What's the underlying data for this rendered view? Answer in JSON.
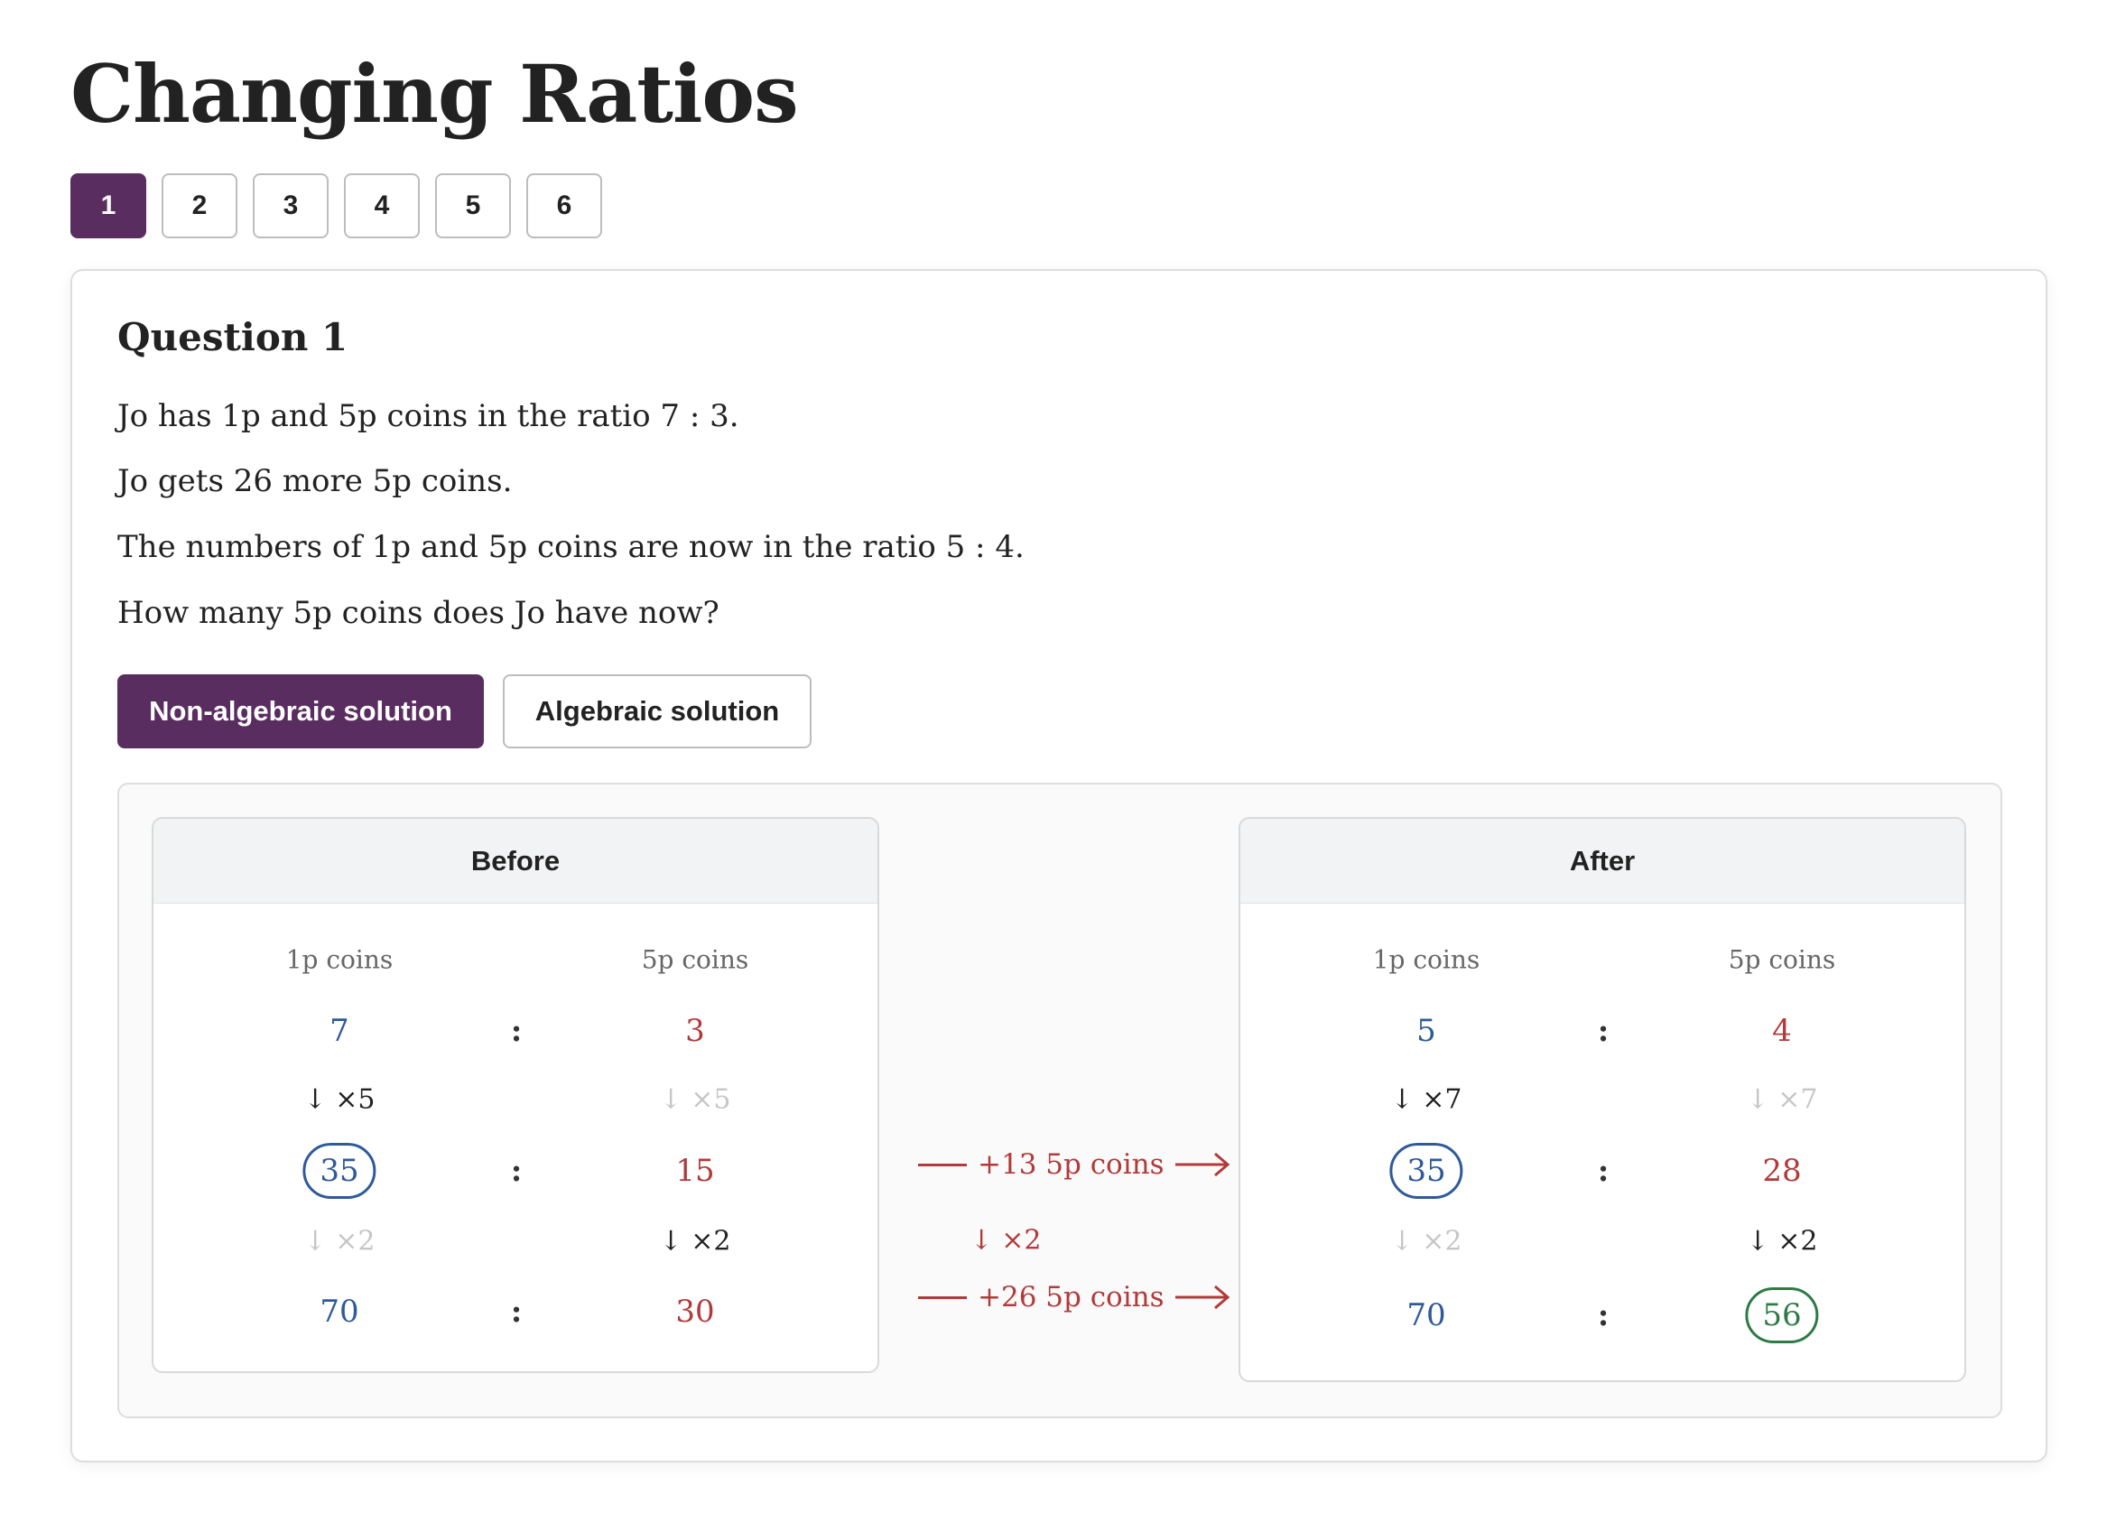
{
  "page": {
    "title": "Changing Ratios"
  },
  "question_nav": {
    "items": [
      {
        "label": "1",
        "active": true
      },
      {
        "label": "2"
      },
      {
        "label": "3"
      },
      {
        "label": "4"
      },
      {
        "label": "5"
      },
      {
        "label": "6"
      }
    ]
  },
  "question": {
    "heading": "Question 1",
    "lines": [
      "Jo has 1p and 5p coins in the ratio 7 : 3.",
      "Jo gets 26 more 5p coins.",
      "The numbers of 1p and 5p coins are now in the ratio 5 : 4.",
      "How many 5p coins does Jo have now?"
    ]
  },
  "solution_toggle": {
    "non_algebraic": "Non-algebraic solution",
    "algebraic": "Algebraic solution",
    "active": "non_algebraic"
  },
  "solution": {
    "colon": ":",
    "before": {
      "title": "Before",
      "col1": "1p coins",
      "col2": "5p coins",
      "r1": {
        "a": "7",
        "b": "3"
      },
      "m1": {
        "a": "×5",
        "b": "×5"
      },
      "r2": {
        "a": "35",
        "b": "15"
      },
      "m2": {
        "a": "×2",
        "b": "×2"
      },
      "r3": {
        "a": "70",
        "b": "30"
      }
    },
    "after": {
      "title": "After",
      "col1": "1p coins",
      "col2": "5p coins",
      "r1": {
        "a": "5",
        "b": "4"
      },
      "m1": {
        "a": "×7",
        "b": "×7"
      },
      "r2": {
        "a": "35",
        "b": "28"
      },
      "m2": {
        "a": "×2",
        "b": "×2"
      },
      "r3": {
        "a": "70",
        "b": "56"
      }
    },
    "middle": {
      "arrow1": "+13 5p coins",
      "mult": "×2",
      "arrow2": "+26 5p coins"
    },
    "down_arrow": "↓"
  },
  "colors": {
    "accent": "#5a2d60",
    "blue": "#2e5a9a",
    "red": "#b13a3a",
    "green": "#2e7a45"
  }
}
